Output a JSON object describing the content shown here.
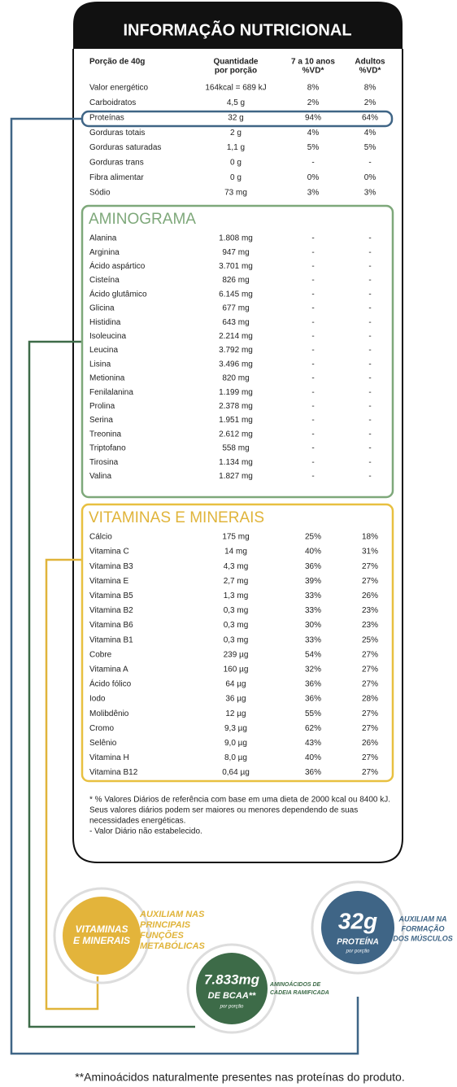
{
  "header": {
    "title": "INFORMAÇÃO NUTRICIONAL"
  },
  "table": {
    "columns": [
      [
        "Porção de 40g"
      ],
      [
        "Quantidade",
        "por porção"
      ],
      [
        "7 a 10 anos",
        "%VD*"
      ],
      [
        "Adultos",
        "%VD*"
      ]
    ],
    "rows": [
      [
        "Valor energético",
        "164kcal = 689 kJ",
        "8%",
        "8%"
      ],
      [
        "Carboidratos",
        "4,5 g",
        "2%",
        "2%"
      ],
      [
        "Proteínas",
        "32 g",
        "94%",
        "64%"
      ],
      [
        "Gorduras totais",
        "2 g",
        "4%",
        "4%"
      ],
      [
        "Gorduras saturadas",
        "1,1 g",
        "5%",
        "5%"
      ],
      [
        "Gorduras trans",
        "0 g",
        "-",
        "-"
      ],
      [
        "Fibra alimentar",
        "0 g",
        "0%",
        "0%"
      ],
      [
        "Sódio",
        "73 mg",
        "3%",
        "3%"
      ]
    ]
  },
  "aminograma": {
    "title": "AMINOGRAMA",
    "rows": [
      [
        "Alanina",
        "1.808 mg",
        "-",
        "-"
      ],
      [
        "Arginina",
        "947 mg",
        "-",
        "-"
      ],
      [
        "Ácido aspártico",
        "3.701 mg",
        "-",
        "-"
      ],
      [
        "Cisteína",
        "826 mg",
        "-",
        "-"
      ],
      [
        "Ácido glutâmico",
        "6.145 mg",
        "-",
        "-"
      ],
      [
        "Glicina",
        "677 mg",
        "-",
        "-"
      ],
      [
        "Histidina",
        "643 mg",
        "-",
        "-"
      ],
      [
        "Isoleucina",
        "2.214 mg",
        "-",
        "-"
      ],
      [
        "Leucina",
        "3.792 mg",
        "-",
        "-"
      ],
      [
        "Lisina",
        "3.496 mg",
        "-",
        "-"
      ],
      [
        "Metionina",
        "820 mg",
        "-",
        "-"
      ],
      [
        "Fenilalanina",
        "1.199 mg",
        "-",
        "-"
      ],
      [
        "Prolina",
        "2.378 mg",
        "-",
        "-"
      ],
      [
        "Serina",
        "1.951 mg",
        "-",
        "-"
      ],
      [
        "Treonina",
        "2.612 mg",
        "-",
        "-"
      ],
      [
        "Triptofano",
        "558 mg",
        "-",
        "-"
      ],
      [
        "Tirosina",
        "1.134 mg",
        "-",
        "-"
      ],
      [
        "Valina",
        "1.827 mg",
        "-",
        "-"
      ]
    ]
  },
  "vitaminas": {
    "title": "VITAMINAS E MINERAIS",
    "rows": [
      [
        "Cálcio",
        "175 mg",
        "25%",
        "18%"
      ],
      [
        "Vitamina C",
        "14 mg",
        "40%",
        "31%"
      ],
      [
        "Vitamina B3",
        "4,3 mg",
        "36%",
        "27%"
      ],
      [
        "Vitamina E",
        "2,7 mg",
        "39%",
        "27%"
      ],
      [
        "Vitamina B5",
        "1,3 mg",
        "33%",
        "26%"
      ],
      [
        "Vitamina B2",
        "0,3 mg",
        "33%",
        "23%"
      ],
      [
        "Vitamina B6",
        "0,3 mg",
        "30%",
        "23%"
      ],
      [
        "Vitamina B1",
        "0,3 mg",
        "33%",
        "25%"
      ],
      [
        "Cobre",
        "239 µg",
        "54%",
        "27%"
      ],
      [
        "Vitamina A",
        "160 µg",
        "32%",
        "27%"
      ],
      [
        "Ácido fólico",
        "64 µg",
        "36%",
        "27%"
      ],
      [
        "Iodo",
        "36 µg",
        "36%",
        "28%"
      ],
      [
        "Molibdênio",
        "12 µg",
        "55%",
        "27%"
      ],
      [
        "Cromo",
        "9,3 µg",
        "62%",
        "27%"
      ],
      [
        "Selênio",
        "9,0 µg",
        "43%",
        "26%"
      ],
      [
        "Vitamina H",
        "8,0 µg",
        "40%",
        "27%"
      ],
      [
        "Vitamina B12",
        "0,64 µg",
        "36%",
        "27%"
      ]
    ]
  },
  "footnote": [
    "* % Valores Diários de referência com base em uma dieta de 2000 kcal ou 8400 kJ.",
    "Seus valores diários podem ser maiores ou menores dependendo de suas",
    "necessidades energéticas.",
    "- Valor Diário não estabelecido."
  ],
  "badges": {
    "vitaminas": {
      "label": [
        "VITAMINAS",
        "E MINERAIS"
      ],
      "caption": [
        "AUXILIAM NAS",
        "PRINCIPAIS",
        "FUNÇÕES",
        "METABÓLICAS"
      ]
    },
    "bcaa": {
      "value": "7.833mg",
      "label": "DE BCAA**",
      "sub": "por porção",
      "caption": [
        "AMINOÁCIDOS DE",
        "CADEIA RAMIFICADA"
      ]
    },
    "proteina": {
      "value": "32g",
      "label": "PROTEÍNA",
      "sub": "por porção",
      "caption": [
        "AUXILIAM NA",
        "FORMAÇÃO",
        "DOS MÚSCULOS"
      ]
    }
  },
  "bottom_note": "**Aminoácidos naturalmente presentes nas proteínas do produto."
}
